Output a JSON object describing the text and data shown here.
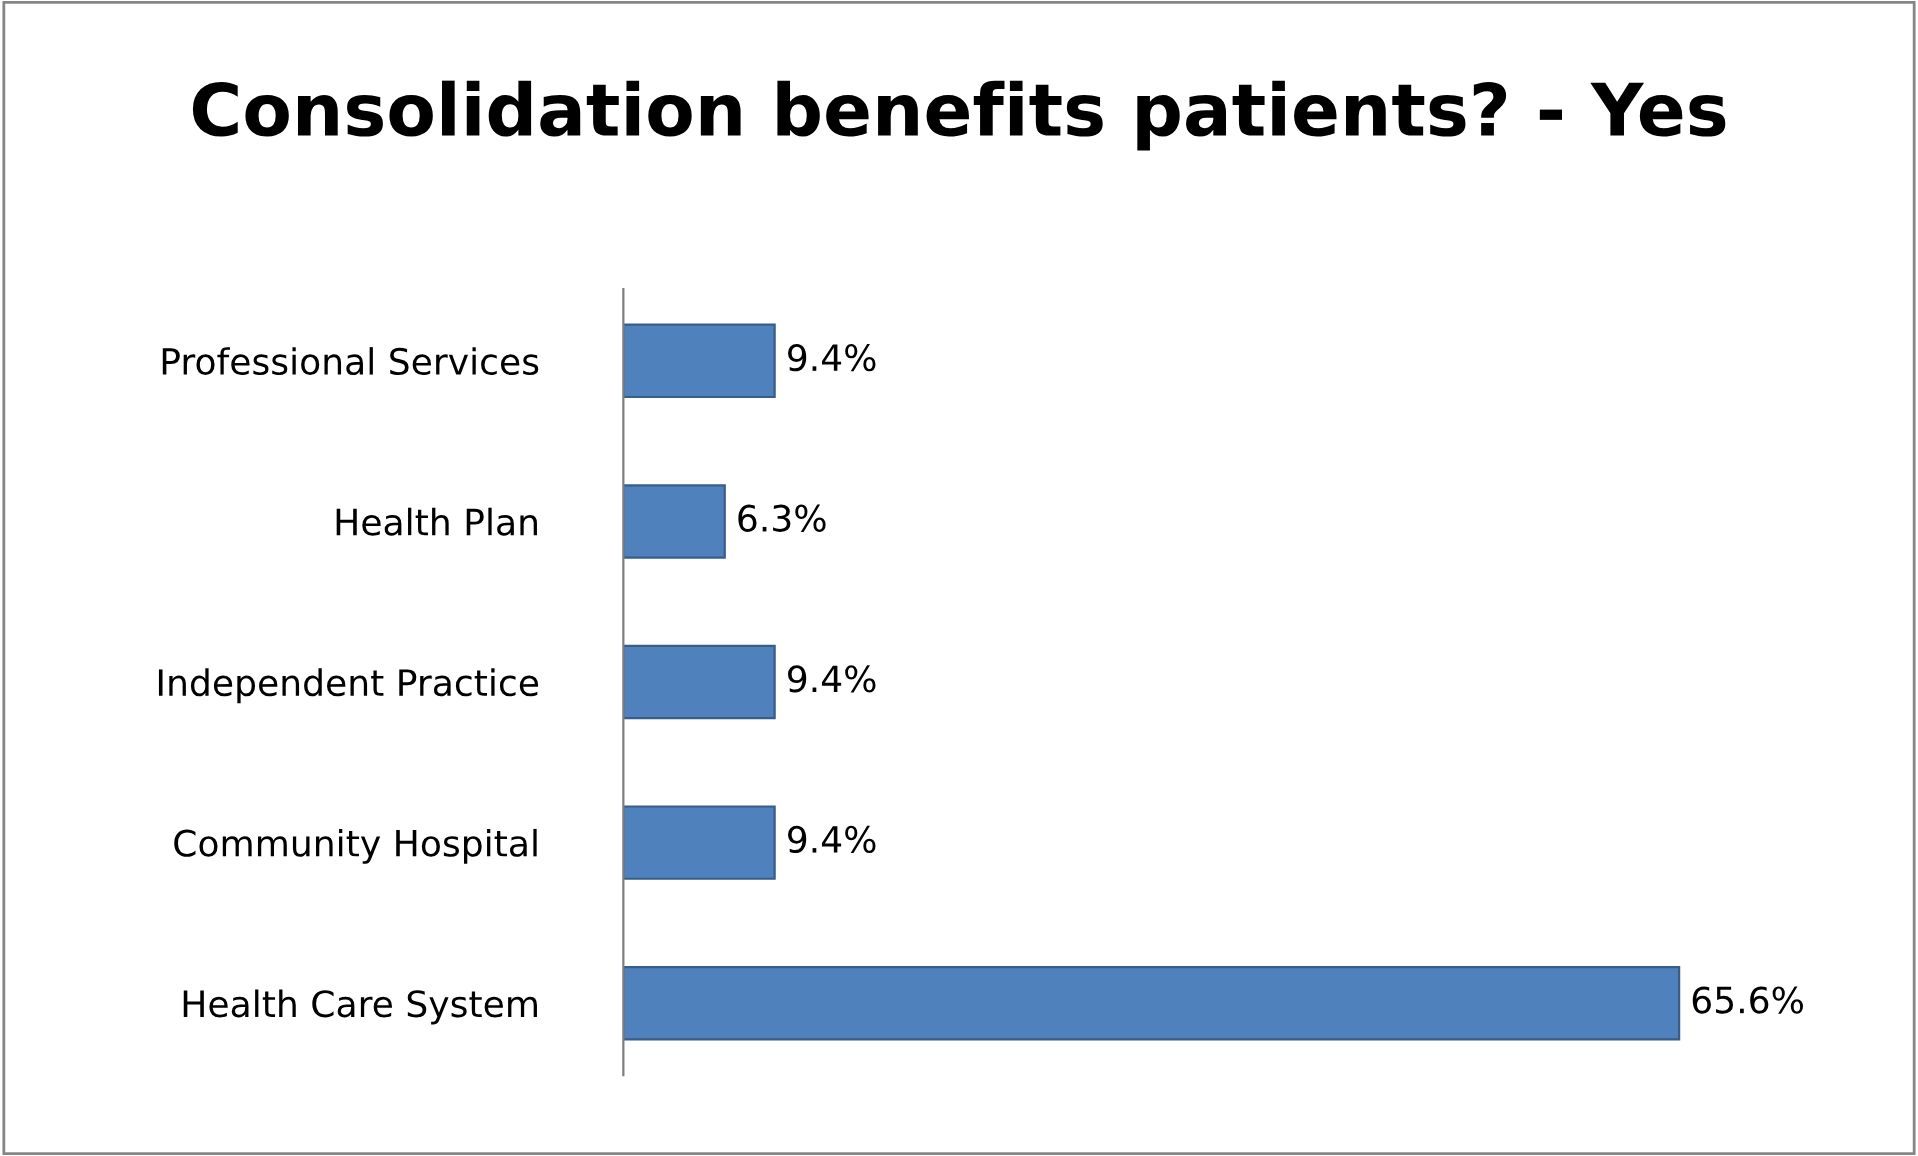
{
  "chart_data": {
    "type": "bar",
    "orientation": "horizontal",
    "title": "Consolidation benefits patients? - Yes",
    "categories": [
      "Professional Services",
      "Health Plan",
      "Independent Practice",
      "Community Hospital",
      "Health Care System"
    ],
    "values": [
      9.4,
      6.3,
      9.4,
      9.4,
      65.6
    ],
    "value_labels": [
      "9.4%",
      "6.3%",
      "9.4%",
      "9.4%",
      "65.6%"
    ],
    "color": "#4f81bd",
    "grid": false,
    "legend": false
  }
}
